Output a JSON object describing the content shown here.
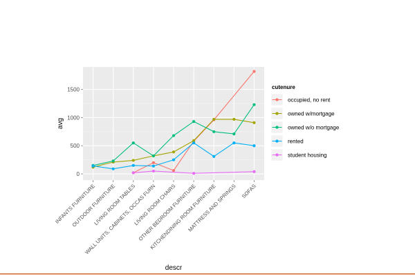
{
  "chart_data": {
    "type": "line",
    "xlabel": "descr",
    "ylabel": "avg",
    "categories": [
      "INFANTS FURNITURE",
      "OUTDOOR FURNITURE",
      "LIVING ROOM TABLES",
      "WALL UNITS, CABINETS, OCCAS FURN",
      "LIVING ROOM CHAIRS",
      "OTHER BEDROOM FURNITURE",
      "KITCHENDINING ROOM FURNITURE",
      "MATTRESS AND SPRINGS",
      "SOFAS"
    ],
    "y_ticks": [
      "0",
      "500",
      "1000",
      "1500"
    ],
    "y_tick_values": [
      0,
      500,
      1000,
      1500
    ],
    "ylim": [
      -110,
      1900
    ],
    "grid": true,
    "legend_title": "cutenure",
    "legend_position": "right",
    "series": [
      {
        "name": "occupied, no rent",
        "color": "#F8766D",
        "values": [
          null,
          null,
          20,
          200,
          60,
          580,
          960,
          null,
          1820
        ]
      },
      {
        "name": "owned w/mortgage",
        "color": "#A3A500",
        "values": [
          120,
          210,
          240,
          320,
          390,
          590,
          970,
          970,
          910
        ]
      },
      {
        "name": "owned w/o mortgage",
        "color": "#00BF7D",
        "values": [
          150,
          230,
          550,
          320,
          680,
          930,
          750,
          710,
          1230
        ]
      },
      {
        "name": "rented",
        "color": "#00B0F6",
        "values": [
          140,
          90,
          150,
          140,
          250,
          550,
          310,
          550,
          500
        ]
      },
      {
        "name": "student housing",
        "color": "#E76BF3",
        "values": [
          null,
          null,
          20,
          50,
          null,
          10,
          null,
          null,
          40
        ]
      }
    ]
  },
  "page": {
    "bottom_rule_color": "#E08A5E"
  }
}
